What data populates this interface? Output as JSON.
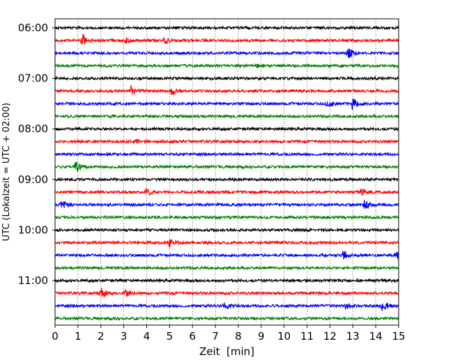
{
  "chart_data": {
    "type": "line",
    "title": "",
    "xlabel": "Zeit  [min]",
    "ylabel": "UTC (Lokalzeit = UTC + 02:00)",
    "xlim": [
      0,
      15
    ],
    "x_ticks": [
      "0",
      "1",
      "2",
      "3",
      "4",
      "5",
      "6",
      "7",
      "8",
      "9",
      "10",
      "11",
      "12",
      "13",
      "14",
      "15"
    ],
    "y_tick_labels": [
      "06:00",
      "07:00",
      "08:00",
      "09:00",
      "10:00",
      "11:00"
    ],
    "grid": "vertical dotted",
    "colors": [
      "#000000",
      "#ff0000",
      "#0000ff",
      "#008000"
    ],
    "traces_per_hour": 4,
    "trace_minutes": 15,
    "traces": [
      {
        "start": "06:00",
        "color": "#000000",
        "events": []
      },
      {
        "start": "06:15",
        "color": "#ff0000",
        "events": [
          {
            "t": 1.2,
            "amp": 1.0
          },
          {
            "t": 3.1,
            "amp": 0.6
          },
          {
            "t": 4.8,
            "amp": 0.5
          }
        ]
      },
      {
        "start": "06:30",
        "color": "#0000ff",
        "events": [
          {
            "t": 12.8,
            "amp": 1.0
          }
        ]
      },
      {
        "start": "06:45",
        "color": "#008000",
        "events": [
          {
            "t": 8.8,
            "amp": 0.3
          }
        ]
      },
      {
        "start": "07:00",
        "color": "#000000",
        "events": []
      },
      {
        "start": "07:15",
        "color": "#ff0000",
        "events": [
          {
            "t": 3.3,
            "amp": 0.8
          },
          {
            "t": 5.1,
            "amp": 0.6
          }
        ]
      },
      {
        "start": "07:30",
        "color": "#0000ff",
        "events": [
          {
            "t": 11.9,
            "amp": 0.6
          },
          {
            "t": 13.0,
            "amp": 1.0
          }
        ]
      },
      {
        "start": "07:45",
        "color": "#008000",
        "events": []
      },
      {
        "start": "08:00",
        "color": "#000000",
        "events": []
      },
      {
        "start": "08:15",
        "color": "#ff0000",
        "events": [
          {
            "t": 3.5,
            "amp": 0.3
          }
        ]
      },
      {
        "start": "08:30",
        "color": "#0000ff",
        "events": []
      },
      {
        "start": "08:45",
        "color": "#008000",
        "events": [
          {
            "t": 0.9,
            "amp": 1.0
          }
        ]
      },
      {
        "start": "09:00",
        "color": "#000000",
        "events": []
      },
      {
        "start": "09:15",
        "color": "#ff0000",
        "events": [
          {
            "t": 4.0,
            "amp": 0.6
          },
          {
            "t": 13.4,
            "amp": 0.6
          }
        ]
      },
      {
        "start": "09:30",
        "color": "#0000ff",
        "events": [
          {
            "t": 0.3,
            "amp": 0.6
          },
          {
            "t": 13.5,
            "amp": 1.0
          }
        ]
      },
      {
        "start": "09:45",
        "color": "#008000",
        "events": []
      },
      {
        "start": "10:00",
        "color": "#000000",
        "events": []
      },
      {
        "start": "10:15",
        "color": "#ff0000",
        "events": [
          {
            "t": 5.0,
            "amp": 0.8
          }
        ]
      },
      {
        "start": "10:30",
        "color": "#0000ff",
        "events": [
          {
            "t": 12.6,
            "amp": 0.8
          },
          {
            "t": 14.9,
            "amp": 0.7
          }
        ]
      },
      {
        "start": "10:45",
        "color": "#008000",
        "events": []
      },
      {
        "start": "11:00",
        "color": "#000000",
        "events": []
      },
      {
        "start": "11:15",
        "color": "#ff0000",
        "events": [
          {
            "t": 2.0,
            "amp": 0.9
          },
          {
            "t": 3.1,
            "amp": 0.7
          }
        ]
      },
      {
        "start": "11:30",
        "color": "#0000ff",
        "events": [
          {
            "t": 7.4,
            "amp": 0.8
          },
          {
            "t": 12.7,
            "amp": 0.5
          },
          {
            "t": 14.3,
            "amp": 1.0
          }
        ]
      },
      {
        "start": "11:45",
        "color": "#008000",
        "events": []
      }
    ]
  }
}
